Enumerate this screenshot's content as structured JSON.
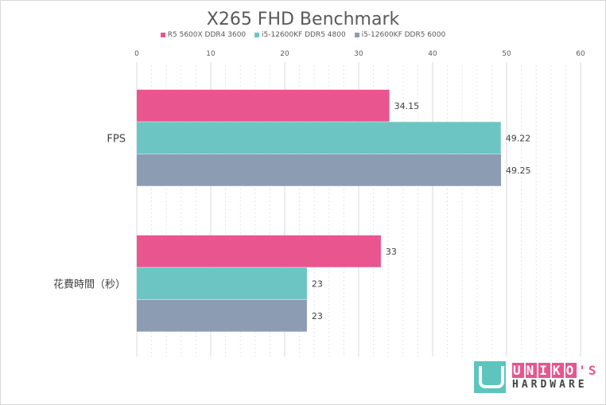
{
  "chart_data": {
    "type": "bar",
    "orientation": "horizontal",
    "title": "X265 FHD Benchmark",
    "categories": [
      "FPS",
      "花費時間（秒）"
    ],
    "series": [
      {
        "name": "R5 5600X DDR4 3600",
        "color": "#e8558f",
        "values": [
          34.15,
          33
        ]
      },
      {
        "name": "i5-12600KF DDR5 4800",
        "color": "#6cc5c3",
        "values": [
          49.22,
          23
        ]
      },
      {
        "name": "i5-12600KF DDR5 6000",
        "color": "#8c9cb3",
        "values": [
          49.25,
          23
        ]
      }
    ],
    "data_labels": [
      [
        "34.15",
        "33"
      ],
      [
        "49.22",
        "23"
      ],
      [
        "49.25",
        "23"
      ]
    ],
    "xlim": [
      0,
      60
    ],
    "xticks": [
      "0",
      "10",
      "20",
      "30",
      "40",
      "50",
      "60"
    ],
    "legend_position": "top",
    "x_axis_position": "top",
    "grid": true
  },
  "logo": {
    "word1_letters": [
      "U",
      "N",
      "I",
      "K",
      "O"
    ],
    "word1_suffix": "'S",
    "word2": "HARDWARE"
  }
}
